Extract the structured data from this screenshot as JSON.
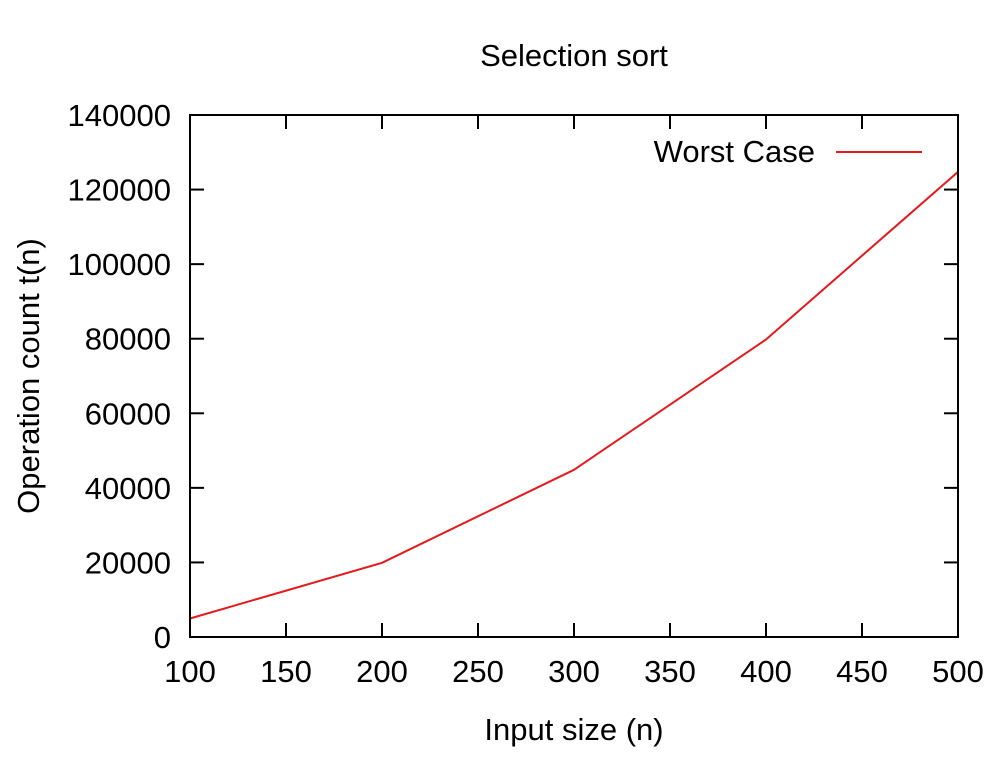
{
  "chart_data": {
    "type": "line",
    "title": "Selection sort",
    "xlabel": "Input size (n)",
    "ylabel": "Operation count t(n)",
    "xlim": [
      100,
      500
    ],
    "ylim": [
      0,
      140000
    ],
    "x_ticks": [
      100,
      150,
      200,
      250,
      300,
      350,
      400,
      450,
      500
    ],
    "y_ticks": [
      0,
      20000,
      40000,
      60000,
      80000,
      100000,
      120000,
      140000
    ],
    "grid": false,
    "legend_position": "top-right",
    "series": [
      {
        "name": "Worst Case",
        "color": "#e41a1c",
        "x": [
          100,
          200,
          300,
          400,
          500
        ],
        "y": [
          4950,
          19900,
          44850,
          79800,
          124750
        ]
      }
    ]
  }
}
